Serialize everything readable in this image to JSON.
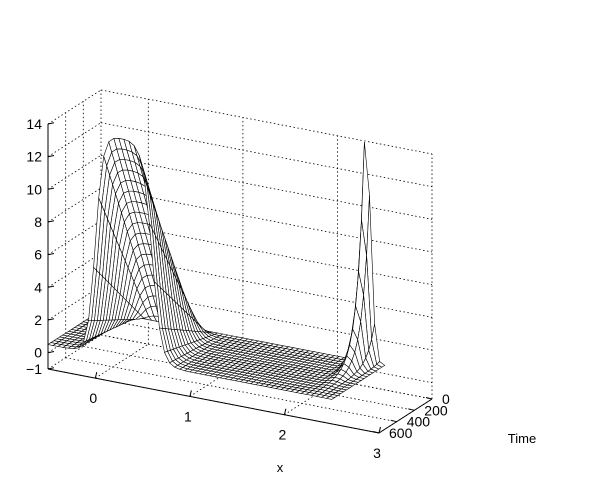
{
  "chart_data": {
    "type": "surface",
    "title": "",
    "xlabel": "x",
    "ylabel": "Time",
    "zlabel": "",
    "xlim": [
      -0.5,
      3
    ],
    "ylim": [
      0,
      600
    ],
    "zlim": [
      -1,
      14
    ],
    "x_ticks": [
      "0",
      "1",
      "2",
      "3"
    ],
    "y_ticks": [
      "0",
      "200",
      "400",
      "600"
    ],
    "z_ticks": [
      "−1",
      "0",
      "2",
      "4",
      "6",
      "8",
      "10",
      "12",
      "14"
    ],
    "grid": true,
    "x_domain": [
      -0.5,
      2.5
    ],
    "time_domain": [
      0,
      600
    ],
    "features": {
      "plateau_x_range": [
        0.0,
        0.6
      ],
      "plateau_peak_height": 13.5,
      "plateau_peak_time": 600,
      "spike_x": 2.3,
      "spike_height": 14,
      "spike_time": 0
    }
  }
}
